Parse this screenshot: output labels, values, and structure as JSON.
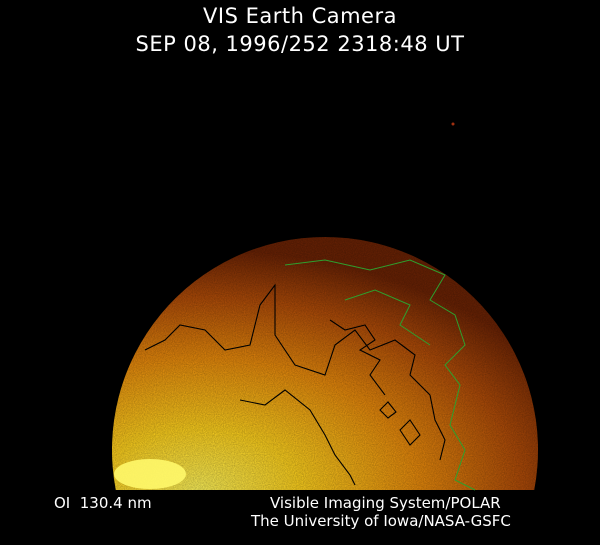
{
  "header": {
    "title": "VIS Earth Camera",
    "timestamp": "SEP 08, 1996/252 2318:48 UT"
  },
  "footer": {
    "filter": "OI  130.4 nm",
    "instrument": "Visible Imaging System/POLAR",
    "credit": "The University of Iowa/NASA-GSFC"
  },
  "colors": {
    "background": "#000000",
    "disk_bright": "#ffe84a",
    "disk_dim": "#7a2a06",
    "coastline": "#000000",
    "grid_overlay": "#2ea02e"
  }
}
